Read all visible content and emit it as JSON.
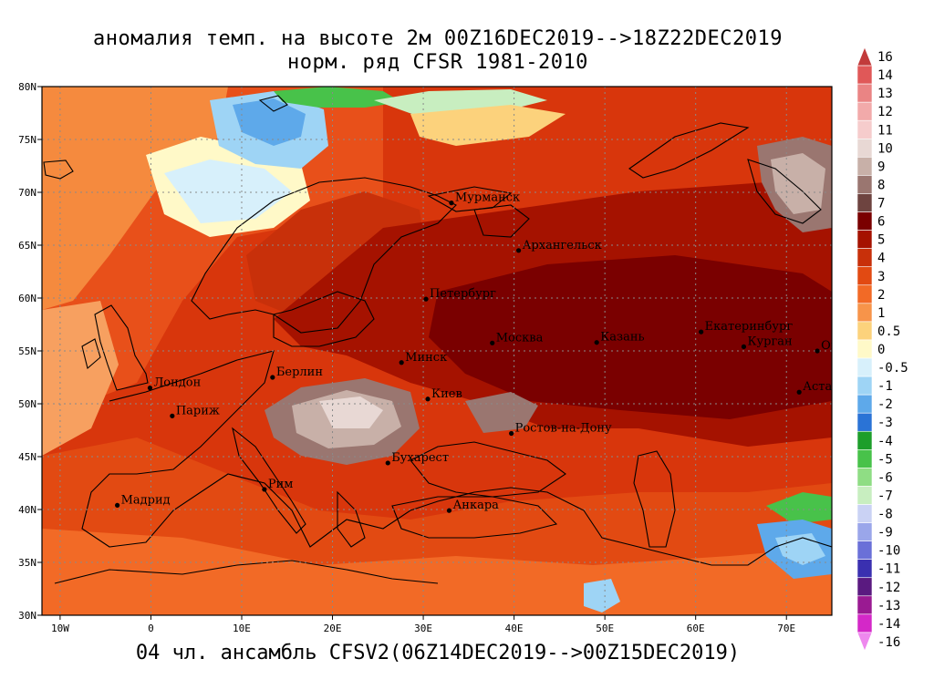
{
  "header": {
    "title_line1": "аномалия темп. на высоте 2м 00Z16DEC2019-->18Z22DEC2019",
    "title_line2": "норм. ряд CFSR 1981-2010"
  },
  "footer": {
    "text": "04 чл. ансамбль CFSV2(06Z14DEC2019-->00Z15DEC2019)"
  },
  "chart_data": {
    "type": "heatmap",
    "x": {
      "range": [
        -12,
        75
      ],
      "ticks": [
        -10,
        0,
        10,
        20,
        30,
        40,
        50,
        60,
        70
      ],
      "tick_labels": [
        "10W",
        "0",
        "10E",
        "20E",
        "30E",
        "40E",
        "50E",
        "60E",
        "70E"
      ]
    },
    "y": {
      "range": [
        30,
        80
      ],
      "ticks": [
        30,
        35,
        40,
        45,
        50,
        55,
        60,
        65,
        70,
        75,
        80
      ],
      "tick_labels": [
        "30N",
        "35N",
        "40N",
        "45N",
        "50N",
        "55N",
        "60N",
        "65N",
        "70N",
        "75N",
        "80N"
      ]
    },
    "grid": true,
    "colorbar": {
      "position": "right",
      "levels": [
        {
          "label": "16",
          "color": "#c23b3b"
        },
        {
          "label": "14",
          "color": "#e05858"
        },
        {
          "label": "13",
          "color": "#ea8484"
        },
        {
          "label": "12",
          "color": "#f2aaaa"
        },
        {
          "label": "11",
          "color": "#f6cccc"
        },
        {
          "label": "10",
          "color": "#e8d8d4"
        },
        {
          "label": "9",
          "color": "#c8b0a8"
        },
        {
          "label": "8",
          "color": "#9a7670"
        },
        {
          "label": "7",
          "color": "#6e4440"
        },
        {
          "label": "6",
          "color": "#7a0000"
        },
        {
          "label": "5",
          "color": "#a51200"
        },
        {
          "label": "4",
          "color": "#c8300a"
        },
        {
          "label": "3",
          "color": "#e24a12"
        },
        {
          "label": "2",
          "color": "#f26a26"
        },
        {
          "label": "1",
          "color": "#f7944a"
        },
        {
          "label": "0.5",
          "color": "#fcd27c"
        },
        {
          "label": "0",
          "color": "#fff9c8"
        },
        {
          "label": "-0.5",
          "color": "#d7f0fb"
        },
        {
          "label": "-1",
          "color": "#9ed4f5"
        },
        {
          "label": "-2",
          "color": "#5ea9ea"
        },
        {
          "label": "-3",
          "color": "#2a73d6"
        },
        {
          "label": "-4",
          "color": "#1d9e2a"
        },
        {
          "label": "-5",
          "color": "#48c24a"
        },
        {
          "label": "-6",
          "color": "#8fdd84"
        },
        {
          "label": "-7",
          "color": "#c8eec0"
        },
        {
          "label": "-8",
          "color": "#cad2f4"
        },
        {
          "label": "-9",
          "color": "#9aa6ea"
        },
        {
          "label": "-10",
          "color": "#6a70d8"
        },
        {
          "label": "-11",
          "color": "#3a30b0"
        },
        {
          "label": "-12",
          "color": "#5a1a80"
        },
        {
          "label": "-13",
          "color": "#9a1a92"
        },
        {
          "label": "-14",
          "color": "#d428c8"
        },
        {
          "label": "-16",
          "color": "#ee88ee"
        }
      ]
    },
    "cities": [
      {
        "name": "Мурманск",
        "lon": 33.1,
        "lat": 69.0
      },
      {
        "name": "Архангельск",
        "lon": 40.5,
        "lat": 64.5
      },
      {
        "name": "Петербург",
        "lon": 30.3,
        "lat": 59.9
      },
      {
        "name": "Москва",
        "lon": 37.6,
        "lat": 55.75
      },
      {
        "name": "Казань",
        "lon": 49.1,
        "lat": 55.8
      },
      {
        "name": "Екатеринбург",
        "lon": 60.6,
        "lat": 56.8
      },
      {
        "name": "Курган",
        "lon": 65.3,
        "lat": 55.4
      },
      {
        "name": "Омск",
        "lon": 73.4,
        "lat": 55.0
      },
      {
        "name": "Астана",
        "lon": 71.4,
        "lat": 51.1
      },
      {
        "name": "Минск",
        "lon": 27.6,
        "lat": 53.9
      },
      {
        "name": "Киев",
        "lon": 30.5,
        "lat": 50.45
      },
      {
        "name": "Берлин",
        "lon": 13.4,
        "lat": 52.5
      },
      {
        "name": "Лондон",
        "lon": -0.1,
        "lat": 51.5
      },
      {
        "name": "Париж",
        "lon": 2.35,
        "lat": 48.85
      },
      {
        "name": "Ростов-на-Дону",
        "lon": 39.7,
        "lat": 47.2
      },
      {
        "name": "Бухарест",
        "lon": 26.1,
        "lat": 44.4
      },
      {
        "name": "Рим",
        "lon": 12.5,
        "lat": 41.9
      },
      {
        "name": "Мадрид",
        "lon": -3.7,
        "lat": 40.4
      },
      {
        "name": "Анкара",
        "lon": 32.85,
        "lat": 39.9
      }
    ]
  }
}
